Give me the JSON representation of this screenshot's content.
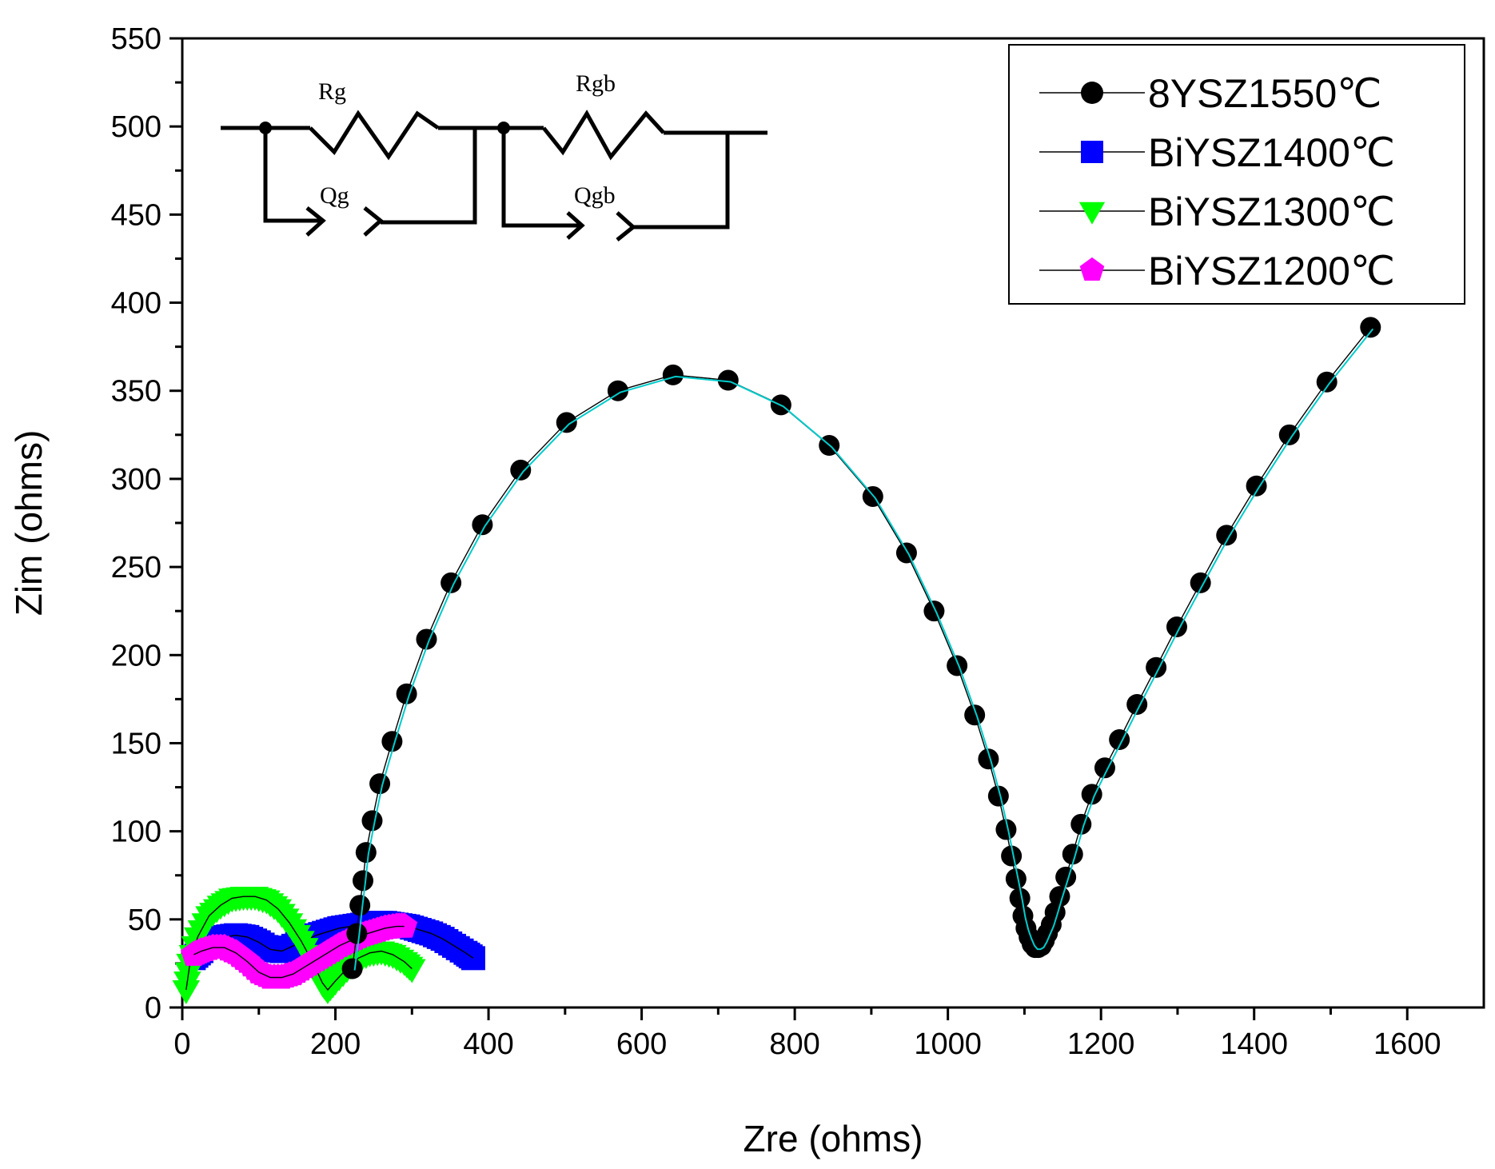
{
  "chart_data": {
    "type": "scatter",
    "xlabel": "Zre (ohms)",
    "ylabel": "Zim (ohms)",
    "xlim": [
      0,
      1700
    ],
    "ylim": [
      0,
      550
    ],
    "xticks": [
      0,
      200,
      400,
      600,
      800,
      1000,
      1200,
      1400,
      1600
    ],
    "yticks": [
      0,
      50,
      100,
      150,
      200,
      250,
      300,
      350,
      400,
      450,
      500,
      550
    ],
    "legend_position": "top-right",
    "series": [
      {
        "name": "8YSZ1550℃",
        "marker": "circle",
        "color": "#000000",
        "fit_color": "#00cccc",
        "points": [
          [
            222,
            22
          ],
          [
            228,
            42
          ],
          [
            232,
            58
          ],
          [
            236,
            72
          ],
          [
            240,
            88
          ],
          [
            248,
            106
          ],
          [
            258,
            127
          ],
          [
            274,
            151
          ],
          [
            293,
            178
          ],
          [
            319,
            209
          ],
          [
            351,
            241
          ],
          [
            392,
            274
          ],
          [
            442,
            305
          ],
          [
            502,
            332
          ],
          [
            569,
            350
          ],
          [
            641,
            359
          ],
          [
            713,
            356
          ],
          [
            782,
            342
          ],
          [
            845,
            319
          ],
          [
            902,
            290
          ],
          [
            946,
            258
          ],
          [
            982,
            225
          ],
          [
            1012,
            194
          ],
          [
            1035,
            166
          ],
          [
            1053,
            141
          ],
          [
            1066,
            120
          ],
          [
            1076,
            101
          ],
          [
            1083,
            86
          ],
          [
            1089,
            73
          ],
          [
            1094,
            62
          ],
          [
            1098,
            52
          ],
          [
            1102,
            45
          ],
          [
            1106,
            40
          ],
          [
            1110,
            36
          ],
          [
            1114,
            34
          ],
          [
            1118,
            34
          ],
          [
            1122,
            35
          ],
          [
            1126,
            38
          ],
          [
            1130,
            42
          ],
          [
            1135,
            47
          ],
          [
            1140,
            54
          ],
          [
            1146,
            63
          ],
          [
            1154,
            74
          ],
          [
            1163,
            87
          ],
          [
            1174,
            104
          ],
          [
            1188,
            121
          ],
          [
            1205,
            136
          ],
          [
            1224,
            152
          ],
          [
            1247,
            172
          ],
          [
            1272,
            193
          ],
          [
            1299,
            216
          ],
          [
            1330,
            241
          ],
          [
            1364,
            268
          ],
          [
            1403,
            296
          ],
          [
            1446,
            325
          ],
          [
            1495,
            355
          ],
          [
            1552,
            386
          ]
        ]
      },
      {
        "name": "BiYSZ1400℃",
        "marker": "square",
        "color": "#0000ff",
        "points": [
          [
            15,
            28
          ],
          [
            25,
            32
          ],
          [
            40,
            38
          ],
          [
            55,
            40
          ],
          [
            70,
            41
          ],
          [
            85,
            40
          ],
          [
            100,
            37
          ],
          [
            115,
            33
          ],
          [
            130,
            32
          ],
          [
            145,
            35
          ],
          [
            160,
            38
          ],
          [
            175,
            41
          ],
          [
            190,
            43
          ],
          [
            205,
            45
          ],
          [
            220,
            46
          ],
          [
            235,
            47
          ],
          [
            250,
            48
          ],
          [
            265,
            48
          ],
          [
            280,
            47
          ],
          [
            295,
            46
          ],
          [
            310,
            44
          ],
          [
            325,
            42
          ],
          [
            340,
            39
          ],
          [
            355,
            35
          ],
          [
            370,
            31
          ],
          [
            380,
            28
          ]
        ]
      },
      {
        "name": "BiYSZ1300℃",
        "marker": "triangle-down",
        "color": "#00ff00",
        "points": [
          [
            5,
            10
          ],
          [
            10,
            25
          ],
          [
            20,
            40
          ],
          [
            35,
            52
          ],
          [
            50,
            58
          ],
          [
            65,
            62
          ],
          [
            80,
            63
          ],
          [
            95,
            63
          ],
          [
            110,
            61
          ],
          [
            125,
            56
          ],
          [
            140,
            48
          ],
          [
            155,
            38
          ],
          [
            170,
            26
          ],
          [
            183,
            14
          ],
          [
            190,
            10
          ],
          [
            200,
            15
          ],
          [
            215,
            22
          ],
          [
            230,
            28
          ],
          [
            245,
            31
          ],
          [
            260,
            32
          ],
          [
            275,
            30
          ],
          [
            290,
            26
          ],
          [
            300,
            22
          ]
        ]
      },
      {
        "name": "BiYSZ1200℃",
        "marker": "pentagon",
        "color": "#ff00ff",
        "points": [
          [
            15,
            30
          ],
          [
            25,
            32
          ],
          [
            40,
            34
          ],
          [
            55,
            34
          ],
          [
            70,
            31
          ],
          [
            85,
            26
          ],
          [
            100,
            20
          ],
          [
            115,
            17
          ],
          [
            130,
            17
          ],
          [
            145,
            19
          ],
          [
            160,
            23
          ],
          [
            175,
            27
          ],
          [
            190,
            31
          ],
          [
            205,
            35
          ],
          [
            220,
            38
          ],
          [
            235,
            41
          ],
          [
            250,
            43
          ],
          [
            265,
            45
          ],
          [
            280,
            46
          ],
          [
            290,
            46
          ]
        ]
      }
    ],
    "circuit": {
      "labels": [
        "Rg",
        "Rgb",
        "Qg",
        "Qgb"
      ]
    }
  }
}
